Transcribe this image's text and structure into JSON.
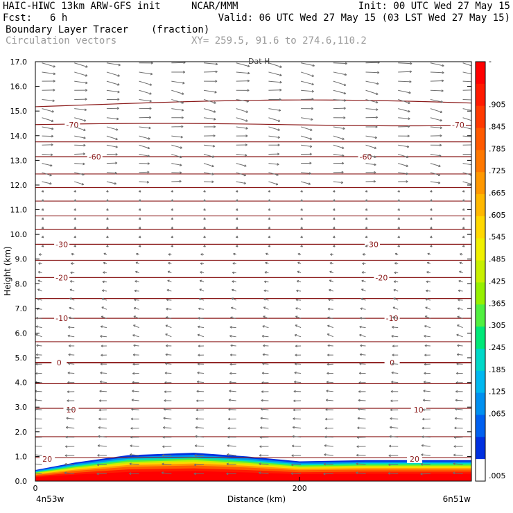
{
  "header": {
    "line1_left": "HAIC-HIWC 13km ARW-GFS init",
    "line1_mid": "NCAR/MMM",
    "line1_right": "Init: 00 UTC Wed 27 May 15",
    "fcst_label": "Fcst:",
    "fcst_value": "6 h",
    "valid": "Valid: 06 UTC Wed 27 May 15 (03 LST Wed 27 May 15)",
    "field_name": "Boundary Layer Tracer",
    "field_units": "(fraction)",
    "overlay_name": "Circulation vectors",
    "xy_label": "XY= 259.5, 91.6 to 274.6,110.2"
  },
  "chart_data": {
    "type": "heatmap",
    "ylabel": "Height (km)",
    "xlabel": "Distance (km)",
    "ylim": [
      0,
      17
    ],
    "xlim": [
      0,
      330
    ],
    "y_ticks": [
      "0.0",
      "1.0",
      "2.0",
      "3.0",
      "4.0",
      "5.0",
      "6.0",
      "7.0",
      "8.0",
      "9.0",
      "10.0",
      "11.0",
      "12.0",
      "13.0",
      "14.0",
      "15.0",
      "16.0",
      "17.0"
    ],
    "x_ticks": [
      {
        "value": 0,
        "label": "0"
      },
      {
        "value": 200,
        "label": "200"
      }
    ],
    "x_end_labels": {
      "left": "4n53w",
      "right": "6n51w"
    },
    "top_label": "Dat H",
    "colorbar": {
      "labels": [
        "-",
        ".905",
        ".845",
        ".785",
        ".725",
        ".665",
        ".605",
        ".545",
        ".485",
        ".425",
        ".365",
        ".305",
        ".245",
        ".185",
        ".125",
        ".065",
        ".005"
      ],
      "colors": [
        "#ff0000",
        "#ff1a00",
        "#ff3a00",
        "#ff5a00",
        "#ff7800",
        "#ff9800",
        "#ffb800",
        "#ffd800",
        "#f0f000",
        "#c8f000",
        "#96f000",
        "#50f040",
        "#00e878",
        "#00d8c8",
        "#00b8f0",
        "#0090f0",
        "#0060f0",
        "#0030e0",
        "#ffffff"
      ]
    },
    "temperature_contours": {
      "color": "#8b1a1a",
      "labels": [
        {
          "text": "-70",
          "y_km": 14.45,
          "x_km": [
            28,
            320
          ]
        },
        {
          "text": "-60",
          "y_km": 13.15,
          "x_km": [
            45,
            250
          ]
        },
        {
          "text": "-30",
          "y_km": 9.6,
          "x_km": [
            20,
            255
          ]
        },
        {
          "text": "-20",
          "y_km": 8.25,
          "x_km": [
            20,
            262
          ]
        },
        {
          "text": "-10",
          "y_km": 6.6,
          "x_km": [
            20,
            270
          ]
        },
        {
          "text": "0",
          "y_km": 4.8,
          "x_km": [
            18,
            270
          ]
        },
        {
          "text": "10",
          "y_km": 2.9,
          "x_km": [
            27,
            290
          ]
        },
        {
          "text": "20",
          "y_km": 0.9,
          "x_km": [
            9,
            287
          ]
        }
      ]
    },
    "boundary_layer_top_km": [
      {
        "x_km": 0,
        "y_km": 0.45
      },
      {
        "x_km": 30,
        "y_km": 0.75
      },
      {
        "x_km": 70,
        "y_km": 1.05
      },
      {
        "x_km": 120,
        "y_km": 1.15
      },
      {
        "x_km": 160,
        "y_km": 1.0
      },
      {
        "x_km": 200,
        "y_km": 0.8
      },
      {
        "x_km": 250,
        "y_km": 0.85
      },
      {
        "x_km": 300,
        "y_km": 0.85
      },
      {
        "x_km": 330,
        "y_km": 0.85
      }
    ]
  }
}
